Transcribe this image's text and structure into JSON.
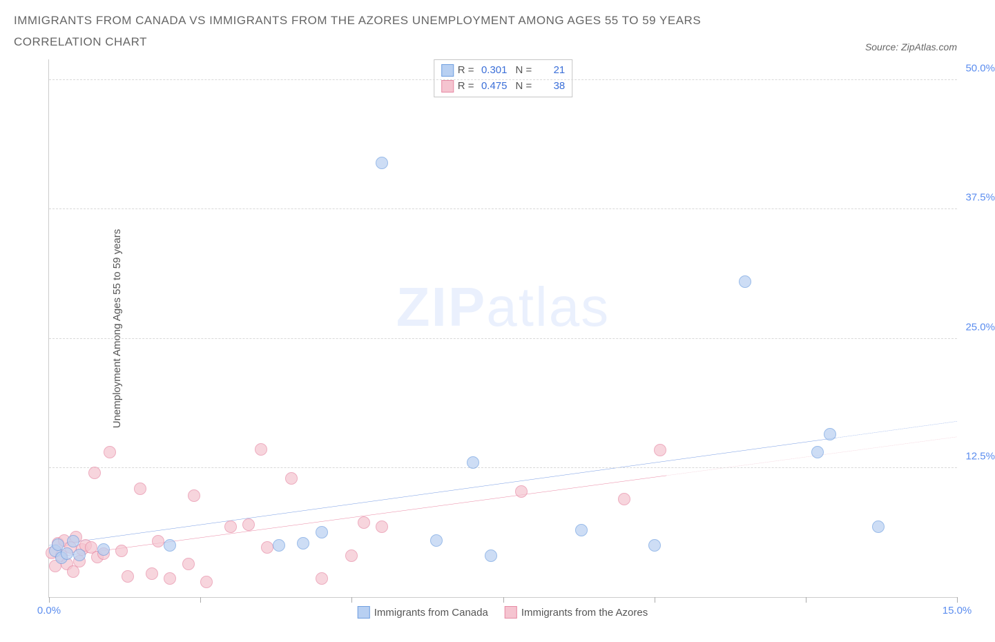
{
  "title": "IMMIGRANTS FROM CANADA VS IMMIGRANTS FROM THE AZORES UNEMPLOYMENT AMONG AGES 55 TO 59 YEARS CORRELATION CHART",
  "source_label": "Source: ZipAtlas.com",
  "y_axis_label": "Unemployment Among Ages 55 to 59 years",
  "watermark_bold": "ZIP",
  "watermark_light": "atlas",
  "chart": {
    "type": "scatter",
    "background_color": "#ffffff",
    "grid_color": "#d8d8d8",
    "axis_color": "#cccccc",
    "xlim": [
      0,
      15
    ],
    "ylim": [
      0,
      52
    ],
    "y_ticks": [
      {
        "v": 12.5,
        "label": "12.5%"
      },
      {
        "v": 25.0,
        "label": "25.0%"
      },
      {
        "v": 37.5,
        "label": "37.5%"
      },
      {
        "v": 50.0,
        "label": "50.0%"
      }
    ],
    "x_ticks": [
      {
        "v": 0,
        "label": "0.0%"
      },
      {
        "v": 15,
        "label": "15.0%"
      }
    ],
    "x_tick_marks": [
      0,
      2.5,
      5,
      7.5,
      10,
      12.5,
      15
    ],
    "point_radius": 9,
    "point_border_width": 1,
    "label_fontsize": 15,
    "title_fontsize": 17,
    "tick_color": "#5b8def",
    "label_color": "#555555"
  },
  "series": [
    {
      "name": "Immigrants from Canada",
      "fill_color": "#b8d0f2",
      "border_color": "#6f9fe0",
      "fill_opacity": 0.7,
      "trend": {
        "x1": 0,
        "y1": 5.0,
        "x2": 15,
        "y2": 17.0,
        "extrapolate_from": 13.0,
        "solid_color": "#3b6fd8",
        "dash_color": "#3b6fd8",
        "width": 2
      },
      "stats": {
        "R": "0.301",
        "N": "21"
      },
      "points": [
        {
          "x": 0.1,
          "y": 4.5
        },
        {
          "x": 0.15,
          "y": 5.1
        },
        {
          "x": 0.2,
          "y": 3.8
        },
        {
          "x": 0.3,
          "y": 4.2
        },
        {
          "x": 0.4,
          "y": 5.4
        },
        {
          "x": 0.5,
          "y": 4.1
        },
        {
          "x": 0.9,
          "y": 4.6
        },
        {
          "x": 2.0,
          "y": 5.0
        },
        {
          "x": 3.8,
          "y": 5.0
        },
        {
          "x": 4.2,
          "y": 5.2
        },
        {
          "x": 4.5,
          "y": 6.3
        },
        {
          "x": 6.4,
          "y": 5.5
        },
        {
          "x": 7.0,
          "y": 13.0
        },
        {
          "x": 7.3,
          "y": 4.0
        },
        {
          "x": 8.8,
          "y": 6.5
        },
        {
          "x": 10.0,
          "y": 5.0
        },
        {
          "x": 11.5,
          "y": 30.5
        },
        {
          "x": 12.7,
          "y": 14.0
        },
        {
          "x": 12.9,
          "y": 15.8
        },
        {
          "x": 13.7,
          "y": 6.8
        },
        {
          "x": 5.5,
          "y": 42.0
        }
      ]
    },
    {
      "name": "Immigrants from the Azores",
      "fill_color": "#f5c4d0",
      "border_color": "#e68aa4",
      "fill_opacity": 0.7,
      "trend": {
        "x1": 0,
        "y1": 3.8,
        "x2": 15,
        "y2": 15.5,
        "extrapolate_from": 10.2,
        "solid_color": "#e0527a",
        "dash_color": "#e8a0b4",
        "width": 2
      },
      "stats": {
        "R": "0.475",
        "N": "38"
      },
      "points": [
        {
          "x": 0.05,
          "y": 4.3
        },
        {
          "x": 0.1,
          "y": 3.0
        },
        {
          "x": 0.15,
          "y": 5.2
        },
        {
          "x": 0.2,
          "y": 4.0
        },
        {
          "x": 0.25,
          "y": 5.5
        },
        {
          "x": 0.3,
          "y": 3.2
        },
        {
          "x": 0.35,
          "y": 4.8
        },
        {
          "x": 0.4,
          "y": 2.5
        },
        {
          "x": 0.45,
          "y": 5.8
        },
        {
          "x": 0.5,
          "y": 3.5
        },
        {
          "x": 0.55,
          "y": 4.6
        },
        {
          "x": 0.6,
          "y": 5.0
        },
        {
          "x": 0.7,
          "y": 4.8
        },
        {
          "x": 0.75,
          "y": 12.0
        },
        {
          "x": 0.8,
          "y": 3.9
        },
        {
          "x": 0.9,
          "y": 4.2
        },
        {
          "x": 1.0,
          "y": 14.0
        },
        {
          "x": 1.2,
          "y": 4.5
        },
        {
          "x": 1.3,
          "y": 2.0
        },
        {
          "x": 1.5,
          "y": 10.5
        },
        {
          "x": 1.7,
          "y": 2.3
        },
        {
          "x": 1.8,
          "y": 5.4
        },
        {
          "x": 2.0,
          "y": 1.8
        },
        {
          "x": 2.3,
          "y": 3.2
        },
        {
          "x": 2.4,
          "y": 9.8
        },
        {
          "x": 2.6,
          "y": 1.5
        },
        {
          "x": 3.0,
          "y": 6.8
        },
        {
          "x": 3.3,
          "y": 7.0
        },
        {
          "x": 3.5,
          "y": 14.3
        },
        {
          "x": 3.6,
          "y": 4.8
        },
        {
          "x": 4.0,
          "y": 11.5
        },
        {
          "x": 4.5,
          "y": 1.8
        },
        {
          "x": 5.0,
          "y": 4.0
        },
        {
          "x": 5.2,
          "y": 7.2
        },
        {
          "x": 5.5,
          "y": 6.8
        },
        {
          "x": 7.8,
          "y": 10.2
        },
        {
          "x": 9.5,
          "y": 9.5
        },
        {
          "x": 10.1,
          "y": 14.2
        }
      ]
    }
  ],
  "stats_legend": {
    "R_label": "R =",
    "N_label": "N ="
  },
  "bottom_legend_labels": [
    "Immigrants from Canada",
    "Immigrants from the Azores"
  ]
}
